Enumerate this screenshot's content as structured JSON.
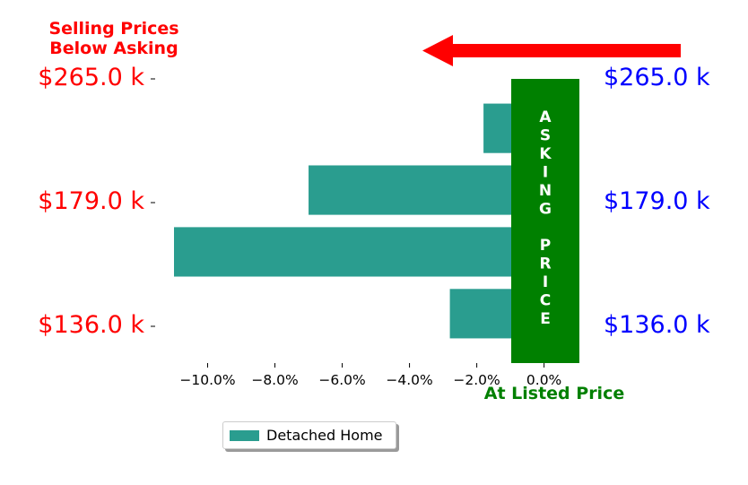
{
  "chart_data": {
    "type": "bar",
    "orientation": "horizontal",
    "series": [
      {
        "name": "Detached Home",
        "color": "#2a9d8f",
        "values": [
          -2.8,
          -11.0,
          -7.0,
          -1.8
        ]
      }
    ],
    "xlim": [
      -11.0,
      1.05
    ],
    "xticks": [
      "−10.0%",
      "−8.0%",
      "−6.0%",
      "−4.0%",
      "−2.0%",
      "0.0%"
    ],
    "left_labels": [
      "$265.0 k",
      "$179.0 k",
      "$136.0 k"
    ],
    "right_labels": [
      "$265.0 k",
      "$179.0 k",
      "$136.0 k"
    ],
    "top_left_note": [
      "Selling Prices",
      "Below Asking"
    ],
    "asking_band_label": "A S K I N G   P R I C E",
    "bottom_label": "At Listed Price",
    "legend_placement": "bottom-left",
    "colors": {
      "bar": "#2a9d8f",
      "band": "#008000",
      "left": "#ff0000",
      "right": "#0000ff",
      "arrow": "#ff0000",
      "band_text": "#ffffff"
    }
  }
}
